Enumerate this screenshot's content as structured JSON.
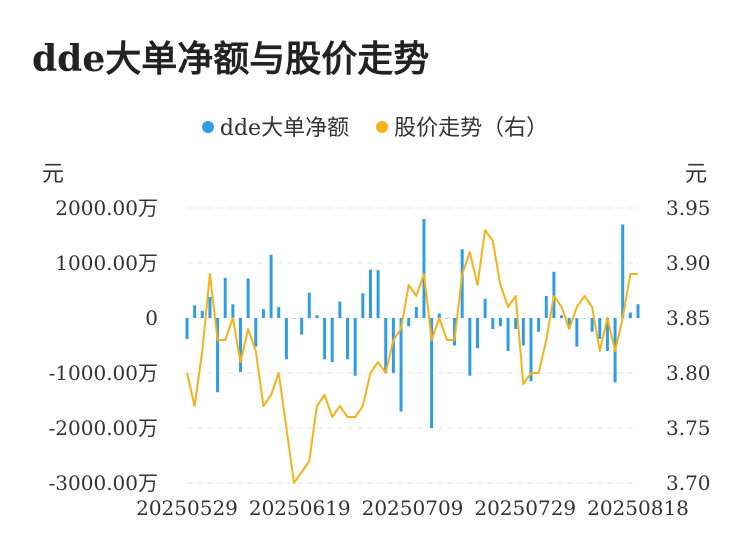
{
  "title": "dde大单净额与股价走势",
  "legend": [
    {
      "label": "dde大单净额",
      "color": "#2f9de4"
    },
    {
      "label": "股价走势（右）",
      "color": "#f5b21a"
    }
  ],
  "units": {
    "left": "元",
    "right": "元"
  },
  "chart_data": {
    "type": "bar+line",
    "left_axis": {
      "ticks": [
        "2000.00万",
        "1000.00万",
        "0",
        "-1000.00万",
        "-2000.00万",
        "-3000.00万"
      ],
      "range": [
        -3000,
        2000
      ]
    },
    "right_axis": {
      "ticks": [
        "3.95",
        "3.90",
        "3.85",
        "3.80",
        "3.75",
        "3.70"
      ],
      "range": [
        3.7,
        3.95
      ]
    },
    "x_ticks": [
      "20250529",
      "20250619",
      "20250709",
      "20250729",
      "20250818"
    ],
    "grid": "horizontal dashed",
    "series": [
      {
        "name": "dde大单净额",
        "type": "bar",
        "color": "#2f9de4",
        "values": [
          -380,
          230,
          130,
          380,
          -1350,
          730,
          250,
          -980,
          720,
          -520,
          160,
          1150,
          200,
          -750,
          0,
          -300,
          460,
          50,
          -750,
          -800,
          300,
          -750,
          -1050,
          450,
          880,
          870,
          -1000,
          -1000,
          -1700,
          -150,
          200,
          1800,
          -2000,
          80,
          0,
          -500,
          1250,
          -1050,
          -550,
          350,
          -200,
          -150,
          -600,
          -200,
          -500,
          -1150,
          -250,
          400,
          840,
          50,
          -180,
          -520,
          0,
          -250,
          -380,
          -600,
          -1170,
          1700,
          100,
          250
        ]
      },
      {
        "name": "股价走势（右）",
        "type": "line",
        "color": "#f5b21a",
        "values": [
          3.8,
          3.77,
          3.82,
          3.89,
          3.83,
          3.83,
          3.85,
          3.81,
          3.84,
          3.82,
          3.77,
          3.78,
          3.8,
          3.75,
          3.7,
          3.71,
          3.72,
          3.77,
          3.78,
          3.76,
          3.77,
          3.76,
          3.76,
          3.77,
          3.8,
          3.81,
          3.8,
          3.83,
          3.84,
          3.88,
          3.87,
          3.89,
          3.83,
          3.85,
          3.83,
          3.83,
          3.89,
          3.91,
          3.88,
          3.93,
          3.92,
          3.88,
          3.86,
          3.87,
          3.79,
          3.8,
          3.8,
          3.83,
          3.87,
          3.86,
          3.84,
          3.86,
          3.87,
          3.86,
          3.82,
          3.85,
          3.82,
          3.85,
          3.89,
          3.89
        ]
      }
    ]
  }
}
